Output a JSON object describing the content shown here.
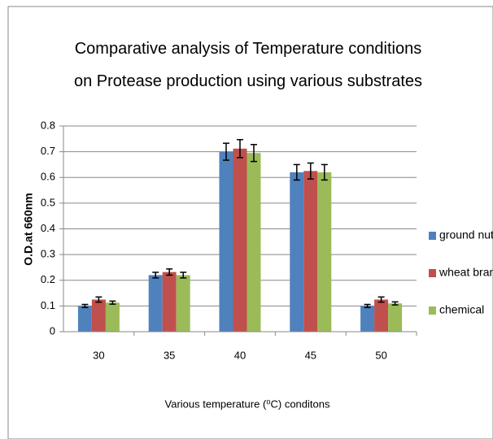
{
  "chart_data": {
    "type": "bar",
    "title": "Comparative analysis of  Temperature conditions on Protease production  using  various substrates",
    "x_label": "Various temperature (⁰C) conditons",
    "y_label": "O.D.at 660nm",
    "categories": [
      "30",
      "35",
      "40",
      "45",
      "50"
    ],
    "series": [
      {
        "name": "ground nut",
        "color": "#4f81bd",
        "values": [
          0.1,
          0.22,
          0.7,
          0.62,
          0.1
        ],
        "errors": [
          0.006,
          0.011,
          0.033,
          0.03,
          0.006
        ]
      },
      {
        "name": "wheat bran",
        "color": "#c0504d",
        "values": [
          0.125,
          0.232,
          0.712,
          0.625,
          0.125
        ],
        "errors": [
          0.01,
          0.012,
          0.035,
          0.031,
          0.01
        ]
      },
      {
        "name": "chemical",
        "color": "#9bbb59",
        "values": [
          0.113,
          0.22,
          0.695,
          0.62,
          0.11
        ],
        "errors": [
          0.006,
          0.011,
          0.033,
          0.03,
          0.006
        ]
      }
    ],
    "ylim": [
      0,
      0.8
    ],
    "yticks": [
      0,
      0.1,
      0.2,
      0.3,
      0.4,
      0.5,
      0.6,
      0.7,
      0.8
    ],
    "grid": true,
    "legend": "right"
  }
}
